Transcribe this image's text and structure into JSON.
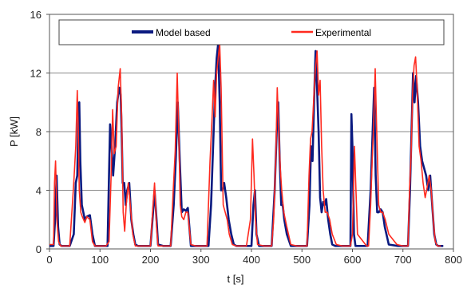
{
  "chart_data": {
    "type": "line",
    "title": "",
    "xlabel": "t [s]",
    "ylabel": "P [kW]",
    "xlim": [
      0,
      800
    ],
    "ylim": [
      0,
      16
    ],
    "xticks": [
      0,
      100,
      200,
      300,
      400,
      500,
      600,
      700,
      800
    ],
    "yticks": [
      0,
      4,
      8,
      12,
      16
    ],
    "grid": "horizontal",
    "legend_position": "top-inside",
    "series": [
      {
        "name": "Model based",
        "color": "#0a1a80",
        "x": [
          0,
          8,
          11,
          14,
          17,
          20,
          24,
          40,
          48,
          52,
          55,
          57,
          59,
          61,
          64,
          67,
          70,
          74,
          80,
          85,
          90,
          95,
          105,
          115,
          120,
          123,
          126,
          130,
          134,
          138,
          141,
          143,
          145,
          148,
          151,
          154,
          158,
          162,
          166,
          170,
          175,
          180,
          185,
          200,
          205,
          208,
          212,
          215,
          225,
          240,
          246,
          250,
          254,
          258,
          262,
          266,
          270,
          274,
          280,
          290,
          315,
          320,
          325,
          328,
          331,
          334,
          337,
          340,
          343,
          346,
          350,
          355,
          360,
          365,
          370,
          378,
          390,
          400,
          404,
          407,
          410,
          415,
          425,
          440,
          446,
          450,
          453,
          456,
          459,
          462,
          465,
          470,
          478,
          490,
          510,
          515,
          518,
          521,
          524,
          527,
          530,
          533,
          536,
          539,
          542,
          545,
          548,
          552,
          556,
          560,
          566,
          575,
          590,
          596,
          598,
          600,
          603,
          606,
          615,
          630,
          636,
          640,
          643,
          646,
          649,
          652,
          656,
          660,
          664,
          672,
          690,
          705,
          710,
          714,
          717,
          720,
          723,
          726,
          730,
          734,
          738,
          742,
          746,
          750,
          754,
          758,
          762,
          766,
          770,
          780
        ],
        "y": [
          0.2,
          0.2,
          2,
          5,
          1.5,
          0.3,
          0.2,
          0.2,
          1,
          4.5,
          5,
          9,
          10,
          6,
          3,
          2.5,
          2,
          2.2,
          2.3,
          1,
          0.2,
          0.2,
          0.2,
          0.2,
          8.5,
          7,
          5,
          7,
          10,
          11,
          10.5,
          8,
          4.5,
          4.5,
          3,
          4,
          4.5,
          2,
          1,
          0.3,
          0.2,
          0.2,
          0.2,
          0.2,
          2.5,
          4,
          2,
          0.3,
          0.2,
          0.2,
          3,
          6,
          10,
          6,
          2.5,
          2.7,
          2.6,
          2.8,
          0.2,
          0.2,
          0.2,
          3,
          8,
          11,
          13,
          14,
          10,
          4,
          4,
          4.5,
          3.5,
          2,
          1,
          0.3,
          0.2,
          0.2,
          0.2,
          0.2,
          3,
          4,
          1,
          0.2,
          0.2,
          0.2,
          4,
          8,
          10,
          6,
          3,
          3,
          2,
          1,
          0.2,
          0.2,
          0.2,
          3,
          7,
          6,
          10,
          13.5,
          11,
          8,
          3.5,
          2.5,
          3.2,
          3,
          3.4,
          2,
          1,
          0.3,
          0.2,
          0.2,
          0.2,
          0.2,
          9.2,
          7,
          1,
          0.2,
          0.2,
          0.2,
          4,
          8,
          11,
          5,
          2.5,
          2.5,
          2.7,
          2.5,
          1.5,
          0.3,
          0.2,
          0.2,
          0.2,
          4,
          8,
          12,
          10,
          11.8,
          10,
          7,
          6,
          5.5,
          5,
          4,
          5,
          3,
          1,
          0.3,
          0.2,
          0.2
        ]
      },
      {
        "name": "Experimental",
        "color": "#ff2a1f",
        "x": [
          0,
          8,
          10,
          12,
          15,
          18,
          22,
          40,
          48,
          52,
          55,
          57,
          59,
          62,
          65,
          70,
          74,
          80,
          85,
          90,
          100,
          112,
          118,
          122,
          125,
          128,
          132,
          136,
          140,
          143,
          146,
          149,
          152,
          156,
          160,
          165,
          170,
          175,
          180,
          200,
          205,
          208,
          212,
          215,
          225,
          240,
          245,
          249,
          253,
          256,
          259,
          262,
          266,
          270,
          274,
          280,
          290,
          312,
          318,
          322,
          325,
          328,
          331,
          334,
          337,
          340,
          344,
          348,
          352,
          356,
          362,
          370,
          378,
          390,
          398,
          402,
          405,
          408,
          412,
          425,
          440,
          444,
          448,
          451,
          454,
          457,
          460,
          464,
          470,
          478,
          490,
          505,
          510,
          514,
          517,
          520,
          523,
          526,
          530,
          533,
          536,
          539,
          542,
          546,
          550,
          555,
          560,
          568,
          580,
          590,
          596,
          600,
          604,
          610,
          628,
          632,
          636,
          639,
          642,
          645,
          648,
          652,
          656,
          660,
          665,
          672,
          688,
          700,
          705,
          710,
          713,
          716,
          719,
          722,
          725,
          728,
          732,
          736,
          740,
          744,
          748,
          752,
          756,
          760,
          764,
          768,
          775
        ],
        "y": [
          0.3,
          0.3,
          4.5,
          6,
          1.8,
          0.5,
          0.2,
          0.2,
          4.5,
          7,
          10.8,
          8,
          4,
          2.5,
          2.2,
          1.8,
          2.2,
          2,
          0.5,
          0.2,
          0.2,
          0.2,
          0.5,
          5,
          9.5,
          6.5,
          7,
          11,
          12.3,
          9,
          2.5,
          1.2,
          3,
          4.5,
          3,
          1,
          0.2,
          0.2,
          0.2,
          0.2,
          3,
          4.5,
          1.5,
          0.2,
          0.2,
          0.2,
          4,
          6.7,
          12,
          8,
          3,
          2.2,
          2,
          2.5,
          2.5,
          0.3,
          0.2,
          0.2,
          6,
          9,
          11.5,
          9,
          12,
          13,
          14,
          11,
          3,
          2.5,
          2,
          1,
          0.3,
          0.2,
          0.2,
          0.2,
          2,
          7.5,
          5,
          2,
          0.3,
          0.2,
          0.2,
          2,
          6,
          11,
          8,
          5.5,
          4,
          2.5,
          1.5,
          0.3,
          0.2,
          0.2,
          0.2,
          5,
          7.5,
          8,
          10,
          12,
          13.5,
          10.5,
          11.5,
          7,
          4,
          2.5,
          2.5,
          2,
          1,
          0.3,
          0.2,
          0.2,
          0.2,
          1,
          7,
          1,
          0.2,
          0.2,
          3,
          6,
          8.5,
          12.3,
          8,
          3,
          2.5,
          2.5,
          2,
          1,
          0.3,
          0.2,
          0.2,
          0.2,
          4,
          6.3,
          10.6,
          12.5,
          13.1,
          11,
          7,
          6,
          4.5,
          3.5,
          4.2,
          5,
          4,
          2,
          0.5,
          0.2,
          0.2
        ]
      }
    ]
  }
}
